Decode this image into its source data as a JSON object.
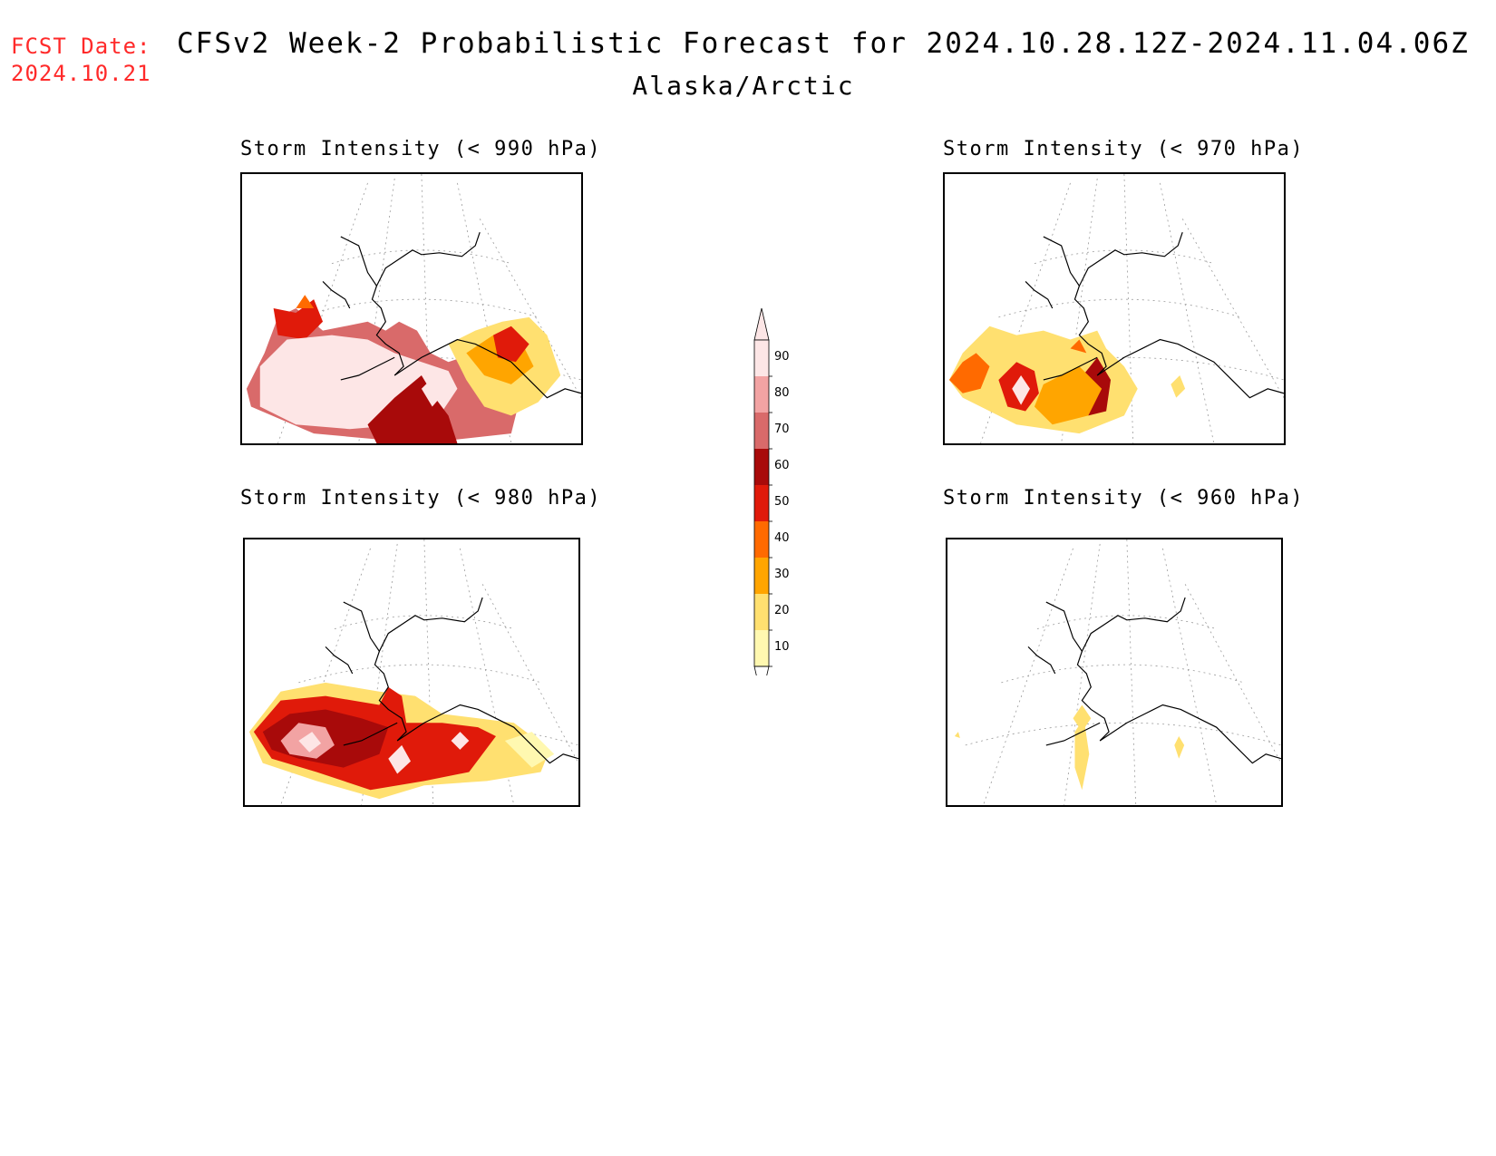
{
  "header": {
    "fcst_label": "FCST Date:",
    "fcst_date": "2024.10.21",
    "title": "CFSv2 Week-2 Probabilistic Forecast for 2024.10.28.12Z-2024.11.04.06Z",
    "subtitle": "Alaska/Arctic"
  },
  "panels": [
    {
      "title": "Storm Intensity (< 990 hPa)"
    },
    {
      "title": "Storm Intensity (< 970 hPa)"
    },
    {
      "title": "Storm Intensity (< 980 hPa)"
    },
    {
      "title": "Storm Intensity (< 960 hPa)"
    }
  ],
  "legend": {
    "labels": [
      "90",
      "80",
      "70",
      "60",
      "50",
      "40",
      "30",
      "20",
      "10"
    ],
    "colors": [
      "#fde6e6",
      "#f2a3a3",
      "#d96a6a",
      "#a80a0a",
      "#e01a0a",
      "#ff6a00",
      "#ffa500",
      "#ffe070",
      "#fff8b0"
    ]
  }
}
